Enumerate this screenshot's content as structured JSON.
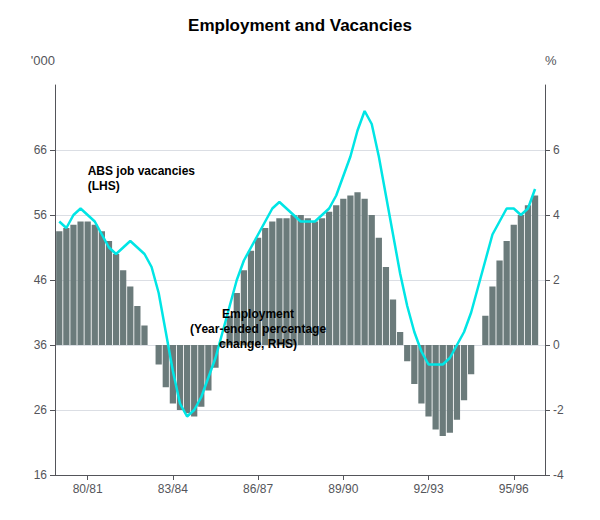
{
  "chart_data": {
    "type": "bar",
    "title": "Employment and Vacancies",
    "ylabel": "'000",
    "y2label": "%",
    "x": [
      1979.5,
      1979.75,
      1980,
      1980.25,
      1980.5,
      1980.75,
      1981,
      1981.25,
      1981.5,
      1981.75,
      1982,
      1982.25,
      1982.5,
      1982.75,
      1983,
      1983.25,
      1983.5,
      1983.75,
      1984,
      1984.25,
      1984.5,
      1984.75,
      1985,
      1985.25,
      1985.5,
      1985.75,
      1986,
      1986.25,
      1986.5,
      1986.75,
      1987,
      1987.25,
      1987.5,
      1987.75,
      1988,
      1988.25,
      1988.5,
      1988.75,
      1989,
      1989.25,
      1989.5,
      1989.75,
      1990,
      1990.25,
      1990.5,
      1990.75,
      1991,
      1991.25,
      1991.5,
      1991.75,
      1992,
      1992.25,
      1992.5,
      1992.75,
      1993,
      1993.25,
      1993.5,
      1993.75,
      1994,
      1994.25,
      1994.5,
      1994.75,
      1995,
      1995.25,
      1995.5,
      1995.75,
      1996,
      1996.25
    ],
    "xlim": [
      1979.35,
      1996.6
    ],
    "xticks": [
      {
        "value": 1980.5,
        "label": "80/81"
      },
      {
        "value": 1983.5,
        "label": "83/84"
      },
      {
        "value": 1986.5,
        "label": "86/87"
      },
      {
        "value": 1989.5,
        "label": "89/90"
      },
      {
        "value": 1992.5,
        "label": "92/93"
      },
      {
        "value": 1995.5,
        "label": "95/96"
      }
    ],
    "ylim": [
      16,
      76
    ],
    "yticks": [
      16,
      26,
      36,
      46,
      56,
      66
    ],
    "y2lim": [
      -4,
      8
    ],
    "y2ticks": [
      -4,
      -2,
      0,
      2,
      4,
      6
    ],
    "grid": true,
    "series": [
      {
        "type": "bar",
        "axis": "y2",
        "color": "#6b7b7b",
        "values": [
          3.5,
          3.6,
          3.7,
          3.8,
          3.8,
          3.7,
          3.5,
          3.2,
          2.8,
          2.3,
          1.8,
          1.2,
          0.6,
          0.0,
          -0.6,
          -1.3,
          -1.8,
          -2.0,
          -2.1,
          -2.2,
          -1.9,
          -1.4,
          -0.7,
          0.1,
          0.9,
          1.6,
          2.3,
          2.9,
          3.3,
          3.6,
          3.8,
          3.9,
          3.9,
          4.0,
          4.0,
          3.9,
          3.8,
          3.9,
          4.1,
          4.3,
          4.5,
          4.6,
          4.7,
          4.5,
          4.0,
          3.3,
          2.4,
          1.4,
          0.4,
          -0.5,
          -1.2,
          -1.8,
          -2.2,
          -2.6,
          -2.8,
          -2.7,
          -2.3,
          -1.7,
          -0.9,
          0.0,
          0.9,
          1.8,
          2.6,
          3.2,
          3.7,
          4.0,
          4.3,
          4.6
        ]
      },
      {
        "type": "line",
        "color": "#00e5e5",
        "values": [
          55,
          54,
          56,
          57,
          56,
          55,
          53,
          51,
          50,
          51,
          52,
          51,
          50,
          48,
          44,
          38,
          32,
          27,
          25,
          26,
          28,
          31,
          34,
          38,
          42,
          46,
          49,
          51,
          53,
          55,
          57,
          58,
          57,
          56,
          55,
          55,
          55,
          56,
          57,
          59,
          62,
          65,
          69,
          72,
          70,
          65,
          59,
          53,
          47,
          42,
          38,
          35,
          33,
          33,
          33,
          34,
          36,
          38,
          41,
          45,
          49,
          53,
          55,
          57,
          57,
          56,
          57,
          60
        ]
      }
    ],
    "annotations": [
      {
        "text": "ABS job vacancies\n(LHS)",
        "x": 1980.5,
        "y": 64
      },
      {
        "text": "Employment\n(Year-ended percentage\nchange, RHS)",
        "x": 1986.5,
        "y": 42
      }
    ]
  }
}
